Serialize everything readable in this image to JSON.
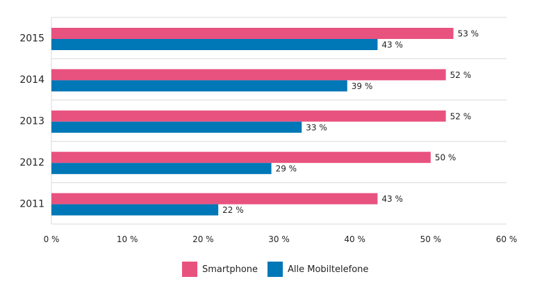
{
  "chart_data": {
    "type": "bar",
    "orientation": "horizontal",
    "categories": [
      "2015",
      "2014",
      "2013",
      "2012",
      "2011"
    ],
    "series": [
      {
        "name": "Smartphone",
        "color": "#e8527f",
        "values": [
          53,
          52,
          52,
          50,
          43
        ],
        "labels": [
          "53 %",
          "52 %",
          "52 %",
          "50 %",
          "43 %"
        ]
      },
      {
        "name": "Alle Mobiltelefone",
        "color": "#0077b6",
        "values": [
          43,
          39,
          33,
          29,
          22
        ],
        "labels": [
          "43 %",
          "39 %",
          "33 %",
          "29 %",
          "22 %"
        ]
      }
    ],
    "xlim": [
      0,
      60
    ],
    "xticks": [
      0,
      10,
      20,
      30,
      40,
      50,
      60
    ],
    "xtick_labels": [
      "0 %",
      "10 %",
      "20 %",
      "30 %",
      "40 %",
      "50 %",
      "60 %"
    ],
    "legend": "bottom",
    "grid": true
  }
}
